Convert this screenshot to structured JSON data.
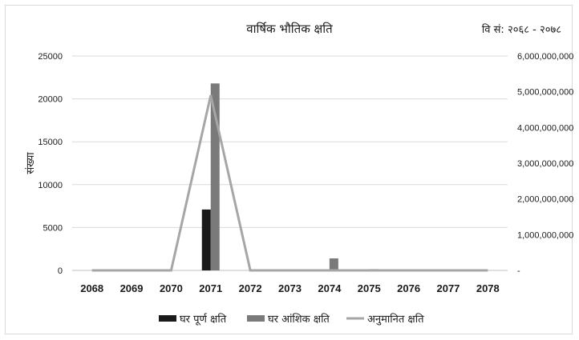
{
  "chart_data": {
    "type": "bar",
    "title": "वार्षिक भौतिक क्षति",
    "range_note": "वि सं: २०६८ - २०७८",
    "ylabel": "संख्या",
    "y2label": "",
    "categories": [
      "2068",
      "2069",
      "2070",
      "2071",
      "2072",
      "2073",
      "2074",
      "2075",
      "2076",
      "2077",
      "2078"
    ],
    "ylim": [
      0,
      25000
    ],
    "yticks": [
      "0",
      "5000",
      "10000",
      "15000",
      "20000",
      "25000"
    ],
    "y2lim": [
      0,
      6000000000
    ],
    "y2ticks": [
      "-",
      "1,000,000,000",
      "2,000,000,000",
      "3,000,000,000",
      "4,000,000,000",
      "5,000,000,000",
      "6,000,000,000"
    ],
    "grid": true,
    "legend_position": "bottom",
    "series": [
      {
        "name": "घर पूर्ण क्षति",
        "kind": "bar",
        "axis": "left",
        "color": "#1a1a1a",
        "values": [
          0,
          0,
          0,
          7100,
          0,
          0,
          0,
          0,
          0,
          0,
          0
        ]
      },
      {
        "name": "घर आंशिक क्षति",
        "kind": "bar",
        "axis": "left",
        "color": "#7a7a7a",
        "values": [
          100,
          0,
          0,
          21800,
          0,
          0,
          1400,
          150,
          100,
          0,
          0
        ]
      },
      {
        "name": "अनुमानित क्षति",
        "kind": "line",
        "axis": "right",
        "color": "#a6a6a6",
        "values": [
          0,
          0,
          0,
          4900000000,
          0,
          0,
          0,
          0,
          0,
          0,
          0
        ]
      }
    ]
  }
}
